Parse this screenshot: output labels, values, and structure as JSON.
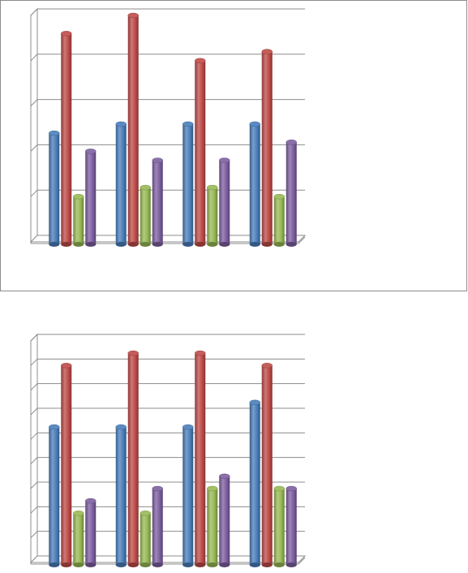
{
  "chart_data": [
    {
      "type": "bar",
      "categories": [
        "",
        "",
        "",
        ""
      ],
      "series": [
        {
          "values": [
            2.4,
            2.6,
            2.6,
            2.6
          ],
          "color": "#4a7ebb"
        },
        {
          "values": [
            4.6,
            5.0,
            4.0,
            4.2
          ],
          "color": "#be4b48"
        },
        {
          "values": [
            1.0,
            1.2,
            1.2,
            1.0
          ],
          "color": "#98b954"
        },
        {
          "values": [
            2.0,
            1.8,
            1.8,
            2.2
          ],
          "color": "#7d5fa0"
        }
      ],
      "ylim": [
        0,
        5
      ],
      "grid": true,
      "style": "3d-cylinder"
    },
    {
      "type": "bar",
      "categories": [
        "",
        "",
        "",
        ""
      ],
      "series": [
        {
          "values": [
            5.5,
            5.5,
            5.5,
            6.5
          ],
          "color": "#4a7ebb"
        },
        {
          "values": [
            8.0,
            8.5,
            8.5,
            8.0
          ],
          "color": "#be4b48"
        },
        {
          "values": [
            2.0,
            2.0,
            3.0,
            3.0
          ],
          "color": "#98b954"
        },
        {
          "values": [
            2.5,
            3.0,
            3.5,
            3.0
          ],
          "color": "#7d5fa0"
        }
      ],
      "ylim": [
        0,
        9
      ],
      "grid": true,
      "style": "3d-cylinder"
    }
  ]
}
